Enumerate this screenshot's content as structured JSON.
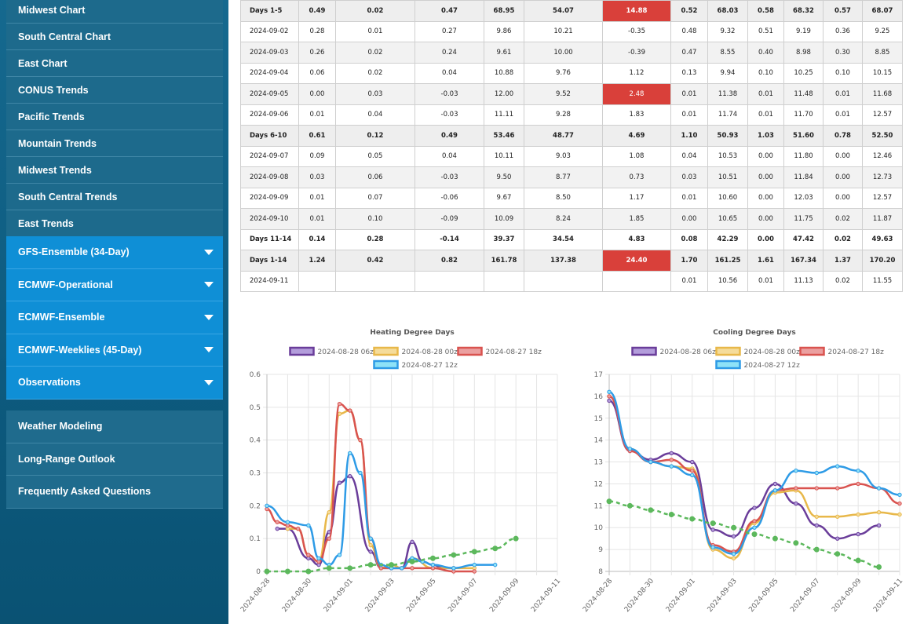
{
  "sidebar": {
    "top_items": [
      {
        "label": "Midwest Chart"
      },
      {
        "label": "South Central Chart"
      },
      {
        "label": "East Chart"
      },
      {
        "label": "CONUS Trends"
      },
      {
        "label": "Pacific Trends"
      },
      {
        "label": "Mountain Trends"
      },
      {
        "label": "Midwest Trends"
      },
      {
        "label": "South Central Trends"
      },
      {
        "label": "East Trends"
      }
    ],
    "dropdowns": [
      {
        "label": "GFS-Ensemble (34-Day)"
      },
      {
        "label": "ECMWF-Operational"
      },
      {
        "label": "ECMWF-Ensemble"
      },
      {
        "label": "ECMWF-Weeklies (45-Day)"
      },
      {
        "label": "Observations"
      }
    ],
    "bottom_items": [
      {
        "label": "Weather Modeling"
      },
      {
        "label": "Long-Range Outlook"
      },
      {
        "label": "Frequently Asked Questions"
      }
    ]
  },
  "table": {
    "rows": [
      {
        "type": "summary",
        "cells": [
          "Days 1-5",
          "0.49",
          "0.02",
          "0.47",
          "68.95",
          "54.07",
          "14.88",
          "0.52",
          "68.03",
          "0.58",
          "68.32",
          "0.57",
          "68.07"
        ],
        "red": [
          6
        ]
      },
      {
        "type": "white",
        "cells": [
          "2024-09-02",
          "0.28",
          "0.01",
          "0.27",
          "9.86",
          "10.21",
          "-0.35",
          "0.48",
          "9.32",
          "0.51",
          "9.19",
          "0.36",
          "9.25"
        ],
        "red": []
      },
      {
        "type": "alt",
        "cells": [
          "2024-09-03",
          "0.26",
          "0.02",
          "0.24",
          "9.61",
          "10.00",
          "-0.39",
          "0.47",
          "8.55",
          "0.40",
          "8.98",
          "0.30",
          "8.85"
        ],
        "red": []
      },
      {
        "type": "white",
        "cells": [
          "2024-09-04",
          "0.06",
          "0.02",
          "0.04",
          "10.88",
          "9.76",
          "1.12",
          "0.13",
          "9.94",
          "0.10",
          "10.25",
          "0.10",
          "10.15"
        ],
        "red": []
      },
      {
        "type": "alt",
        "cells": [
          "2024-09-05",
          "0.00",
          "0.03",
          "-0.03",
          "12.00",
          "9.52",
          "2.48",
          "0.01",
          "11.38",
          "0.01",
          "11.48",
          "0.01",
          "11.68"
        ],
        "red": [
          6
        ]
      },
      {
        "type": "white",
        "cells": [
          "2024-09-06",
          "0.01",
          "0.04",
          "-0.03",
          "11.11",
          "9.28",
          "1.83",
          "0.01",
          "11.74",
          "0.01",
          "11.70",
          "0.01",
          "12.57"
        ],
        "red": []
      },
      {
        "type": "summary",
        "cells": [
          "Days 6-10",
          "0.61",
          "0.12",
          "0.49",
          "53.46",
          "48.77",
          "4.69",
          "1.10",
          "50.93",
          "1.03",
          "51.60",
          "0.78",
          "52.50"
        ],
        "red": []
      },
      {
        "type": "white",
        "cells": [
          "2024-09-07",
          "0.09",
          "0.05",
          "0.04",
          "10.11",
          "9.03",
          "1.08",
          "0.04",
          "10.53",
          "0.00",
          "11.80",
          "0.00",
          "12.46"
        ],
        "red": []
      },
      {
        "type": "alt",
        "cells": [
          "2024-09-08",
          "0.03",
          "0.06",
          "-0.03",
          "9.50",
          "8.77",
          "0.73",
          "0.03",
          "10.51",
          "0.00",
          "11.84",
          "0.00",
          "12.73"
        ],
        "red": []
      },
      {
        "type": "white",
        "cells": [
          "2024-09-09",
          "0.01",
          "0.07",
          "-0.06",
          "9.67",
          "8.50",
          "1.17",
          "0.01",
          "10.60",
          "0.00",
          "12.03",
          "0.00",
          "12.57"
        ],
        "red": []
      },
      {
        "type": "alt",
        "cells": [
          "2024-09-10",
          "0.01",
          "0.10",
          "-0.09",
          "10.09",
          "8.24",
          "1.85",
          "0.00",
          "10.65",
          "0.00",
          "11.75",
          "0.02",
          "11.87"
        ],
        "red": []
      },
      {
        "type": "summary-white",
        "cells": [
          "Days 11-14",
          "0.14",
          "0.28",
          "-0.14",
          "39.37",
          "34.54",
          "4.83",
          "0.08",
          "42.29",
          "0.00",
          "47.42",
          "0.02",
          "49.63"
        ],
        "red": []
      },
      {
        "type": "summary",
        "cells": [
          "Days 1-14",
          "1.24",
          "0.42",
          "0.82",
          "161.78",
          "137.38",
          "24.40",
          "1.70",
          "161.25",
          "1.61",
          "167.34",
          "1.37",
          "170.20"
        ],
        "red": [
          6
        ]
      },
      {
        "type": "white",
        "cells": [
          "2024-09-11",
          "",
          "",
          "",
          "",
          "",
          "",
          "0.01",
          "10.56",
          "0.01",
          "11.13",
          "0.02",
          "11.55"
        ],
        "red": []
      }
    ]
  },
  "chart_data": [
    {
      "type": "line",
      "title": "Heating Degree Days",
      "xlabel": "",
      "ylabel": "",
      "x_ticks": [
        "2024-08-28",
        "2024-08-30",
        "2024-09-01",
        "2024-09-03",
        "2024-09-05",
        "2024-09-07",
        "2024-09-09",
        "2024-09-11"
      ],
      "y_ticks": [
        "0",
        "0.1",
        "0.2",
        "0.3",
        "0.4",
        "0.5",
        "0.6"
      ],
      "ylim": [
        0,
        0.6
      ],
      "xlim": [
        "2024-08-28",
        "2024-09-11"
      ],
      "legend_position": "top",
      "grid": true,
      "series": [
        {
          "name": "2024-08-28 06z",
          "color": "#6a3d9a",
          "fill": "#b39ddb",
          "dashed": false,
          "points": [
            [
              0.5,
              0.13
            ],
            [
              1.0,
              0.13
            ],
            [
              2.0,
              0.04
            ],
            [
              2.5,
              0.02
            ],
            [
              3.0,
              0.12
            ],
            [
              3.5,
              0.27
            ],
            [
              4.0,
              0.29
            ],
            [
              5.0,
              0.06
            ],
            [
              5.5,
              0.01
            ],
            [
              6.0,
              0.01
            ],
            [
              6.5,
              0.01
            ],
            [
              7.0,
              0.09
            ],
            [
              7.5,
              0.03
            ],
            [
              8.0,
              0.02
            ],
            [
              8.5,
              0.01
            ],
            [
              9.0,
              0.01
            ]
          ]
        },
        {
          "name": "2024-08-28 00z",
          "color": "#e8b84a",
          "fill": "#f5dc9a",
          "dashed": false,
          "points": [
            [
              1.0,
              0.13
            ],
            [
              1.5,
              0.13
            ],
            [
              2.0,
              0.05
            ],
            [
              2.5,
              0.03
            ],
            [
              3.0,
              0.18
            ],
            [
              3.5,
              0.48
            ],
            [
              4.0,
              0.49
            ],
            [
              4.5,
              0.4
            ],
            [
              5.0,
              0.08
            ],
            [
              5.5,
              0.01
            ],
            [
              6.0,
              0.02
            ],
            [
              6.5,
              0.01
            ],
            [
              7.0,
              0.04
            ],
            [
              8.0,
              0.01
            ],
            [
              9.0,
              0.01
            ],
            [
              10.0,
              0.01
            ]
          ]
        },
        {
          "name": "2024-08-27 18z",
          "color": "#d9534f",
          "fill": "#eba0a0",
          "dashed": false,
          "points": [
            [
              0,
              0.19
            ],
            [
              0.5,
              0.15
            ],
            [
              1.0,
              0.14
            ],
            [
              1.5,
              0.13
            ],
            [
              2.0,
              0.05
            ],
            [
              2.5,
              0.03
            ],
            [
              3.0,
              0.1
            ],
            [
              3.5,
              0.51
            ],
            [
              4.0,
              0.49
            ],
            [
              4.5,
              0.4
            ],
            [
              5.0,
              0.1
            ],
            [
              5.5,
              0.01
            ],
            [
              6.0,
              0.01
            ],
            [
              6.5,
              0.01
            ],
            [
              7.0,
              0.01
            ],
            [
              8.0,
              0.01
            ],
            [
              9.0,
              0.0
            ],
            [
              10.0,
              0.0
            ]
          ]
        },
        {
          "name": "2024-08-27 12z",
          "color": "#2e9be6",
          "fill": "#8ee2f7",
          "dashed": false,
          "points": [
            [
              0,
              0.2
            ],
            [
              1.0,
              0.15
            ],
            [
              2.0,
              0.14
            ],
            [
              2.5,
              0.04
            ],
            [
              3.0,
              0.02
            ],
            [
              3.5,
              0.05
            ],
            [
              4.0,
              0.36
            ],
            [
              4.5,
              0.3
            ],
            [
              5.0,
              0.1
            ],
            [
              5.5,
              0.02
            ],
            [
              6.0,
              0.01
            ],
            [
              6.5,
              0.01
            ],
            [
              7.0,
              0.04
            ],
            [
              7.5,
              0.03
            ],
            [
              8.0,
              0.02
            ],
            [
              9.0,
              0.01
            ],
            [
              10.0,
              0.02
            ],
            [
              11.0,
              0.02
            ]
          ]
        },
        {
          "name": "",
          "color": "#5cb85c",
          "fill": "#5cb85c",
          "dashed": true,
          "points": [
            [
              0,
              0.0
            ],
            [
              1,
              0.0
            ],
            [
              2,
              0.0
            ],
            [
              3,
              0.01
            ],
            [
              4,
              0.01
            ],
            [
              5,
              0.02
            ],
            [
              6,
              0.02
            ],
            [
              7,
              0.03
            ],
            [
              8,
              0.04
            ],
            [
              9,
              0.05
            ],
            [
              10,
              0.06
            ],
            [
              11,
              0.07
            ],
            [
              12,
              0.1
            ]
          ]
        }
      ]
    },
    {
      "type": "line",
      "title": "Cooling Degree Days",
      "xlabel": "",
      "ylabel": "",
      "x_ticks": [
        "2024-08-28",
        "2024-08-30",
        "2024-09-01",
        "2024-09-03",
        "2024-09-05",
        "2024-09-07",
        "2024-09-09",
        "2024-09-11"
      ],
      "y_ticks": [
        "8",
        "9",
        "10",
        "11",
        "12",
        "13",
        "14",
        "15",
        "16",
        "17"
      ],
      "ylim": [
        8,
        17
      ],
      "xlim": [
        "2024-08-28",
        "2024-09-11"
      ],
      "legend_position": "top",
      "grid": true,
      "series": [
        {
          "name": "2024-08-28 06z",
          "color": "#6a3d9a",
          "fill": "#b39ddb",
          "dashed": false,
          "points": [
            [
              0,
              15.8
            ],
            [
              1,
              13.5
            ],
            [
              2,
              13.1
            ],
            [
              3,
              13.4
            ],
            [
              4,
              13.0
            ],
            [
              5,
              9.9
            ],
            [
              6,
              9.6
            ],
            [
              7,
              10.9
            ],
            [
              8,
              12.0
            ],
            [
              9,
              11.1
            ],
            [
              10,
              10.1
            ],
            [
              11,
              9.5
            ],
            [
              12,
              9.7
            ],
            [
              13,
              10.1
            ]
          ]
        },
        {
          "name": "2024-08-28 00z",
          "color": "#e8b84a",
          "fill": "#f5dc9a",
          "dashed": false,
          "points": [
            [
              0,
              16.0
            ],
            [
              1,
              13.6
            ],
            [
              2,
              13.0
            ],
            [
              3,
              12.8
            ],
            [
              4,
              12.7
            ],
            [
              5,
              9.0
            ],
            [
              6,
              8.6
            ],
            [
              7,
              10.2
            ],
            [
              8,
              11.6
            ],
            [
              9,
              11.7
            ],
            [
              10,
              10.5
            ],
            [
              11,
              10.5
            ],
            [
              12,
              10.6
            ],
            [
              13,
              10.7
            ],
            [
              14,
              10.6
            ]
          ]
        },
        {
          "name": "2024-08-27 18z",
          "color": "#d9534f",
          "fill": "#eba0a0",
          "dashed": false,
          "points": [
            [
              0,
              16.0
            ],
            [
              1,
              13.5
            ],
            [
              2,
              13.0
            ],
            [
              3,
              13.1
            ],
            [
              4,
              12.6
            ],
            [
              5,
              9.2
            ],
            [
              6,
              8.9
            ],
            [
              7,
              10.3
            ],
            [
              8,
              11.7
            ],
            [
              9,
              11.8
            ],
            [
              10,
              11.8
            ],
            [
              11,
              11.8
            ],
            [
              12,
              12.0
            ],
            [
              13,
              11.8
            ],
            [
              14,
              11.1
            ]
          ]
        },
        {
          "name": "2024-08-27 12z",
          "color": "#2e9be6",
          "fill": "#8ee2f7",
          "dashed": false,
          "points": [
            [
              0,
              16.2
            ],
            [
              1,
              13.6
            ],
            [
              2,
              13.0
            ],
            [
              3,
              12.8
            ],
            [
              4,
              12.4
            ],
            [
              5,
              9.1
            ],
            [
              6,
              8.8
            ],
            [
              7,
              10.0
            ],
            [
              8,
              11.7
            ],
            [
              9,
              12.6
            ],
            [
              10,
              12.5
            ],
            [
              11,
              12.8
            ],
            [
              12,
              12.6
            ],
            [
              13,
              11.8
            ],
            [
              14,
              11.5
            ]
          ]
        },
        {
          "name": "",
          "color": "#5cb85c",
          "fill": "#5cb85c",
          "dashed": true,
          "points": [
            [
              0,
              11.2
            ],
            [
              1,
              11.0
            ],
            [
              2,
              10.8
            ],
            [
              3,
              10.6
            ],
            [
              4,
              10.4
            ],
            [
              5,
              10.2
            ],
            [
              6,
              10.0
            ],
            [
              7,
              9.7
            ],
            [
              8,
              9.5
            ],
            [
              9,
              9.3
            ],
            [
              10,
              9.0
            ],
            [
              11,
              8.8
            ],
            [
              12,
              8.5
            ],
            [
              13,
              8.2
            ]
          ]
        }
      ]
    }
  ]
}
